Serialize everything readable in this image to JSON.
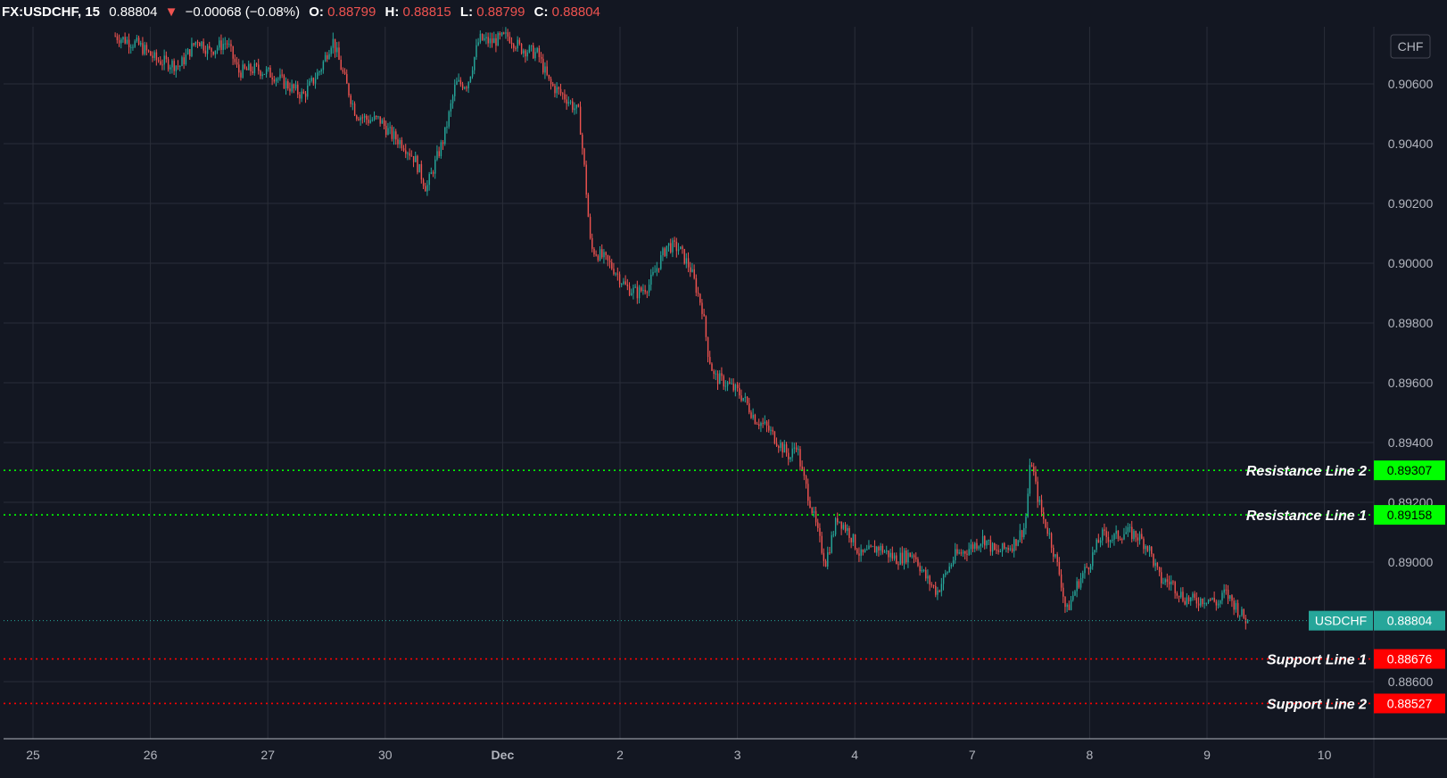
{
  "header": {
    "symbol_interval": "FX:USDCHF, 15",
    "last": "0.88804",
    "change": "−0.00068 (−0.08%)",
    "o_label": "O:",
    "o": "0.88799",
    "h_label": "H:",
    "h": "0.88815",
    "l_label": "L:",
    "l": "0.88799",
    "c_label": "C:",
    "c": "0.88804"
  },
  "currency_badge": "CHF",
  "colors": {
    "background": "#131722",
    "grid": "#2a2e39",
    "up": "#26a69a",
    "down": "#ef5350",
    "resistance": "#00ff00",
    "support": "#ff0000",
    "price_tag": "#26a69a"
  },
  "chart_data": {
    "type": "candlestick",
    "symbol": "FX:USDCHF",
    "interval": "15",
    "ylim": [
      0.8848,
      0.9078
    ],
    "y_ticks": [
      0.906,
      0.904,
      0.902,
      0.9,
      0.898,
      0.896,
      0.894,
      0.892,
      0.89,
      0.886
    ],
    "y_tick_labels": [
      "0.90600",
      "0.90400",
      "0.90200",
      "0.90000",
      "0.89800",
      "0.89600",
      "0.89400",
      "0.89200",
      "0.89000",
      "0.88600"
    ],
    "x_ticks": [
      {
        "label": "25",
        "d": 0
      },
      {
        "label": "26",
        "d": 1
      },
      {
        "label": "27",
        "d": 2
      },
      {
        "label": "30",
        "d": 3
      },
      {
        "label": "Dec",
        "d": 4
      },
      {
        "label": "2",
        "d": 5
      },
      {
        "label": "3",
        "d": 6
      },
      {
        "label": "4",
        "d": 7
      },
      {
        "label": "7",
        "d": 8
      },
      {
        "label": "8",
        "d": 9
      },
      {
        "label": "9",
        "d": 10
      },
      {
        "label": "10",
        "d": 11
      }
    ],
    "x_range_days": [
      -0.1,
      11.55
    ],
    "price_path": [
      [
        0.7,
        0.9076
      ],
      [
        0.9,
        0.9073
      ],
      [
        1.05,
        0.9068
      ],
      [
        1.25,
        0.9066
      ],
      [
        1.4,
        0.9075
      ],
      [
        1.5,
        0.9071
      ],
      [
        1.65,
        0.9074
      ],
      [
        1.75,
        0.9064
      ],
      [
        1.9,
        0.9065
      ],
      [
        2.05,
        0.9063
      ],
      [
        2.15,
        0.906
      ],
      [
        2.3,
        0.9056
      ],
      [
        2.45,
        0.9065
      ],
      [
        2.55,
        0.9075
      ],
      [
        2.65,
        0.9062
      ],
      [
        2.75,
        0.905
      ],
      [
        2.85,
        0.9048
      ],
      [
        2.95,
        0.9048
      ],
      [
        3.05,
        0.9043
      ],
      [
        3.15,
        0.904
      ],
      [
        3.25,
        0.9035
      ],
      [
        3.35,
        0.9025
      ],
      [
        3.5,
        0.9042
      ],
      [
        3.6,
        0.906
      ],
      [
        3.7,
        0.906
      ],
      [
        3.8,
        0.9075
      ],
      [
        3.9,
        0.9074
      ],
      [
        4.05,
        0.9076
      ],
      [
        4.15,
        0.9072
      ],
      [
        4.3,
        0.907
      ],
      [
        4.4,
        0.906
      ],
      [
        4.55,
        0.9055
      ],
      [
        4.65,
        0.905
      ],
      [
        4.7,
        0.903
      ],
      [
        4.75,
        0.9005
      ],
      [
        4.85,
        0.9002
      ],
      [
        4.95,
        0.8998
      ],
      [
        5.05,
        0.8992
      ],
      [
        5.15,
        0.899
      ],
      [
        5.25,
        0.8993
      ],
      [
        5.4,
        0.9006
      ],
      [
        5.5,
        0.9005
      ],
      [
        5.6,
        0.8998
      ],
      [
        5.7,
        0.8985
      ],
      [
        5.75,
        0.897
      ],
      [
        5.8,
        0.8962
      ],
      [
        5.9,
        0.896
      ],
      [
        6.0,
        0.8957
      ],
      [
        6.05,
        0.8955
      ],
      [
        6.15,
        0.8948
      ],
      [
        6.25,
        0.8945
      ],
      [
        6.35,
        0.894
      ],
      [
        6.45,
        0.8935
      ],
      [
        6.5,
        0.894
      ],
      [
        6.55,
        0.893
      ],
      [
        6.62,
        0.892
      ],
      [
        6.7,
        0.8907
      ],
      [
        6.75,
        0.89
      ],
      [
        6.85,
        0.8915
      ],
      [
        6.95,
        0.891
      ],
      [
        7.05,
        0.8902
      ],
      [
        7.2,
        0.8905
      ],
      [
        7.35,
        0.8901
      ],
      [
        7.5,
        0.8903
      ],
      [
        7.6,
        0.8895
      ],
      [
        7.7,
        0.889
      ],
      [
        7.85,
        0.8902
      ],
      [
        7.95,
        0.8904
      ],
      [
        8.1,
        0.8908
      ],
      [
        8.2,
        0.8903
      ],
      [
        8.35,
        0.8906
      ],
      [
        8.45,
        0.8912
      ],
      [
        8.5,
        0.8935
      ],
      [
        8.55,
        0.8923
      ],
      [
        8.6,
        0.8915
      ],
      [
        8.65,
        0.891
      ],
      [
        8.75,
        0.8895
      ],
      [
        8.8,
        0.8883
      ],
      [
        8.9,
        0.8893
      ],
      [
        9.0,
        0.89
      ],
      [
        9.1,
        0.8909
      ],
      [
        9.2,
        0.8908
      ],
      [
        9.3,
        0.891
      ],
      [
        9.4,
        0.8909
      ],
      [
        9.45,
        0.8907
      ],
      [
        9.5,
        0.8905
      ],
      [
        9.6,
        0.8894
      ],
      [
        9.7,
        0.8893
      ],
      [
        9.8,
        0.8888
      ],
      [
        9.9,
        0.8887
      ],
      [
        10.0,
        0.8888
      ],
      [
        10.1,
        0.8886
      ],
      [
        10.15,
        0.889
      ],
      [
        10.25,
        0.8885
      ],
      [
        10.3,
        0.8882
      ],
      [
        10.35,
        0.888
      ]
    ],
    "levels": [
      {
        "name": "Resistance Line 2",
        "value": "0.89307",
        "kind": "resistance"
      },
      {
        "name": "Resistance Line 1",
        "value": "0.89158",
        "kind": "resistance"
      },
      {
        "name": "Support Line 1",
        "value": "0.88676",
        "kind": "support"
      },
      {
        "name": "Support Line 2",
        "value": "0.88527",
        "kind": "support"
      }
    ],
    "last_price": {
      "label": "USDCHF",
      "value": "0.88804"
    }
  }
}
